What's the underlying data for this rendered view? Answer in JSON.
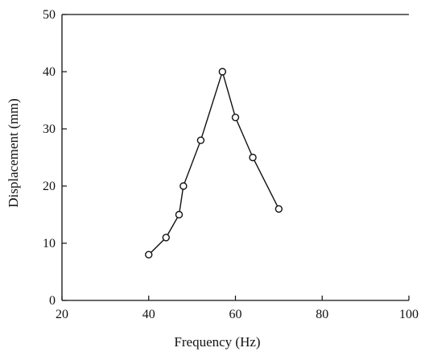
{
  "chart_data": {
    "type": "line",
    "title": "",
    "xlabel": "Frequency (Hz)",
    "ylabel": "Displacement (mm)",
    "xlim": [
      20,
      100
    ],
    "ylim": [
      0,
      50
    ],
    "x_ticks": [
      20,
      40,
      60,
      80,
      100
    ],
    "y_ticks": [
      0,
      10,
      20,
      30,
      40,
      50
    ],
    "grid": false,
    "legend": "none",
    "marker": "hollow-circle",
    "line_color": "#111111",
    "series": [
      {
        "x": [
          40,
          44,
          47,
          48,
          52,
          57,
          60,
          64,
          70
        ],
        "y": [
          8,
          11,
          15,
          20,
          28,
          40,
          32,
          25,
          16
        ]
      }
    ]
  }
}
